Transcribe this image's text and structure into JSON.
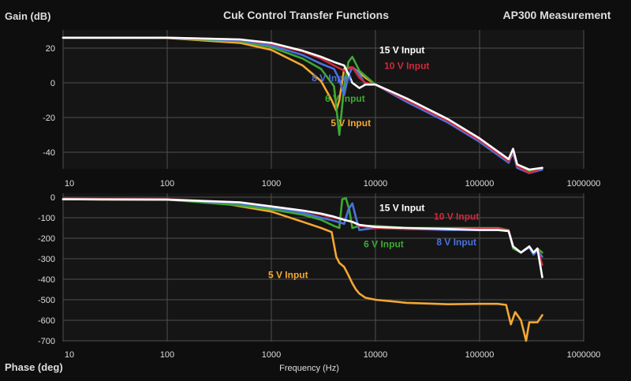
{
  "header": {
    "gain_label": "Gain (dB)",
    "title": "Cuk Control Transfer Functions",
    "measurement": "AP300 Measurement"
  },
  "footer": {
    "phase_label": "Phase (deg)",
    "xlabel": "Frequency (Hz)"
  },
  "colors": {
    "background": "#0e0e0e",
    "plot_background": "#151515",
    "grid": "#505050",
    "text": "#dedede",
    "white": "#ffffff",
    "red": "#d0283c",
    "green": "#3ea834",
    "blue": "#4a72e0",
    "orange": "#f2a832"
  },
  "chart_data": [
    {
      "type": "line",
      "title": "Cuk Control Transfer Functions",
      "subtitle": "AP300 Measurement",
      "xlabel": "",
      "ylabel": "Gain (dB)",
      "x_scale": "log",
      "xlim": [
        10,
        1000000
      ],
      "ylim": [
        -50,
        28
      ],
      "x_ticks": [
        "10",
        "100",
        "1000",
        "10000",
        "100000",
        "1000000"
      ],
      "y_ticks": [
        "20",
        "0",
        "-20",
        "-40"
      ],
      "grid": true,
      "series": [
        {
          "name": "5 V Input",
          "color": "#f2a832",
          "x": [
            10,
            100,
            500,
            1000,
            2000,
            3000,
            3800,
            4200,
            4500,
            5000,
            6000,
            8000,
            10000,
            20000,
            50000,
            100000,
            190000,
            210000,
            230000,
            300000,
            400000
          ],
          "y": [
            26,
            25.8,
            23,
            19,
            10,
            1,
            -10,
            -16,
            -10,
            8,
            9,
            3,
            -1,
            -10,
            -22,
            -33,
            -46,
            -40,
            -48,
            -51,
            -49
          ]
        },
        {
          "name": "6 V Input",
          "color": "#3ea834",
          "x": [
            10,
            100,
            500,
            1000,
            2000,
            3000,
            4000,
            4500,
            5000,
            5500,
            6000,
            7000,
            10000,
            20000,
            50000,
            100000,
            190000,
            210000,
            230000,
            300000,
            400000
          ],
          "y": [
            26,
            25.9,
            24,
            20.5,
            14,
            8,
            -2,
            -30,
            -2,
            12,
            15,
            7,
            -1,
            -10,
            -22,
            -33,
            -45,
            -40,
            -48,
            -51,
            -49
          ]
        },
        {
          "name": "8 V Input",
          "color": "#4a72e0",
          "x": [
            10,
            100,
            500,
            1000,
            2000,
            3000,
            4000,
            4500,
            5000,
            5500,
            6000,
            7000,
            8000,
            10000,
            20000,
            50000,
            100000,
            190000,
            210000,
            230000,
            300000,
            400000
          ],
          "y": [
            26,
            26,
            24.5,
            21.5,
            16,
            11,
            8,
            2,
            -7,
            4,
            9,
            5,
            -1,
            -1,
            -11,
            -23,
            -34,
            -46,
            -40,
            -49,
            -52,
            -50
          ]
        },
        {
          "name": "10 V Input",
          "color": "#d0283c",
          "x": [
            10,
            100,
            500,
            1000,
            2000,
            3000,
            4000,
            5000,
            6000,
            7000,
            8000,
            10000,
            20000,
            50000,
            100000,
            190000,
            210000,
            230000,
            300000,
            400000
          ],
          "y": [
            26,
            26,
            25,
            22.5,
            18,
            14,
            10,
            7,
            9,
            3,
            0,
            -1,
            -10,
            -22,
            -33,
            -45,
            -39,
            -48,
            -52,
            -49
          ]
        },
        {
          "name": "15 V Input",
          "color": "#ffffff",
          "x": [
            10,
            100,
            500,
            1000,
            2000,
            3000,
            4000,
            5000,
            5500,
            6000,
            7000,
            8000,
            10000,
            20000,
            50000,
            100000,
            190000,
            210000,
            230000,
            300000,
            400000
          ],
          "y": [
            26,
            26,
            25,
            23,
            18.5,
            15,
            12,
            10,
            5,
            0,
            -3,
            -1,
            -1,
            -9,
            -21,
            -32,
            -44,
            -38,
            -47,
            -50,
            -49
          ]
        }
      ]
    },
    {
      "type": "line",
      "title": "",
      "xlabel": "Frequency (Hz)",
      "ylabel": "Phase (deg)",
      "x_scale": "log",
      "xlim": [
        10,
        1000000
      ],
      "ylim": [
        -700,
        0
      ],
      "x_ticks": [
        "10",
        "100",
        "1000",
        "10000",
        "100000",
        "1000000"
      ],
      "y_ticks": [
        "0",
        "-100",
        "-200",
        "-300",
        "-400",
        "-500",
        "-600",
        "-700"
      ],
      "grid": true,
      "series": [
        {
          "name": "5 V Input",
          "color": "#f2a832",
          "x": [
            10,
            100,
            300,
            1000,
            2000,
            3000,
            3800,
            4200,
            4500,
            5000,
            5500,
            6000,
            6500,
            7000,
            8000,
            10000,
            20000,
            50000,
            100000,
            150000,
            180000,
            200000,
            220000,
            250000,
            280000,
            300000,
            330000,
            360000,
            400000
          ],
          "y": [
            -10,
            -12,
            -25,
            -70,
            -120,
            -150,
            -170,
            -290,
            -320,
            -340,
            -380,
            -420,
            -450,
            -470,
            -490,
            -500,
            -515,
            -522,
            -520,
            -520,
            -525,
            -620,
            -560,
            -600,
            -700,
            -610,
            -610,
            -610,
            -575
          ]
        },
        {
          "name": "6 V Input",
          "color": "#3ea834",
          "x": [
            10,
            100,
            500,
            1000,
            2000,
            3000,
            4000,
            4500,
            4800,
            5200,
            5600,
            6000,
            7000,
            10000,
            20000,
            50000,
            100000,
            150000,
            190000,
            210000,
            250000,
            300000,
            330000,
            360000,
            400000
          ],
          "y": [
            -10,
            -12,
            -40,
            -60,
            -85,
            -110,
            -140,
            -150,
            -10,
            -5,
            -60,
            -150,
            -140,
            -140,
            -150,
            -150,
            -150,
            -150,
            -160,
            -250,
            -270,
            -240,
            -270,
            -250,
            -270
          ]
        },
        {
          "name": "8 V Input",
          "color": "#4a72e0",
          "x": [
            10,
            100,
            500,
            1000,
            2000,
            3000,
            4000,
            5000,
            5500,
            6000,
            6500,
            7000,
            10000,
            20000,
            50000,
            100000,
            150000,
            190000,
            210000,
            250000,
            300000,
            330000,
            360000,
            400000
          ],
          "y": [
            -8,
            -10,
            -30,
            -50,
            -75,
            -100,
            -115,
            -130,
            -60,
            -30,
            -100,
            -160,
            -150,
            -155,
            -160,
            -160,
            -160,
            -165,
            -240,
            -270,
            -245,
            -280,
            -260,
            -290
          ]
        },
        {
          "name": "10 V Input",
          "color": "#d0283c",
          "x": [
            10,
            100,
            500,
            1000,
            2000,
            3000,
            4000,
            5000,
            6000,
            7000,
            10000,
            20000,
            50000,
            100000,
            150000,
            190000,
            210000,
            250000,
            300000,
            330000,
            360000,
            400000
          ],
          "y": [
            -8,
            -10,
            -25,
            -45,
            -65,
            -85,
            -100,
            -110,
            -120,
            -140,
            -150,
            -155,
            -155,
            -155,
            -155,
            -160,
            -240,
            -270,
            -240,
            -270,
            -250,
            -330
          ]
        },
        {
          "name": "15 V Input",
          "color": "#ffffff",
          "x": [
            10,
            100,
            500,
            1000,
            2000,
            3000,
            4000,
            5000,
            6000,
            7000,
            10000,
            20000,
            50000,
            100000,
            150000,
            190000,
            210000,
            250000,
            300000,
            330000,
            360000,
            400000
          ],
          "y": [
            -10,
            -12,
            -25,
            -45,
            -65,
            -80,
            -95,
            -110,
            -120,
            -135,
            -145,
            -150,
            -155,
            -160,
            -160,
            -165,
            -240,
            -270,
            -240,
            -270,
            -250,
            -390
          ]
        }
      ]
    }
  ]
}
